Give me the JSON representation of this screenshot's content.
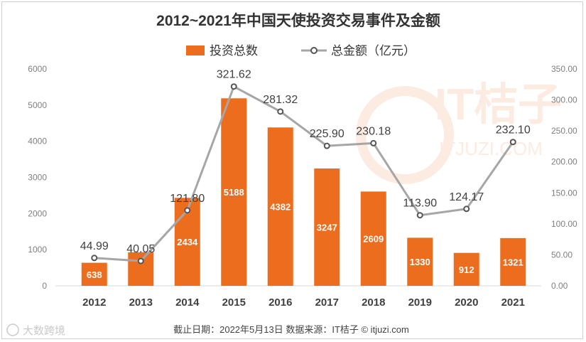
{
  "chart_data": {
    "type": "bar+line",
    "title": "2012~2021年中国天使投资交易事件及金额",
    "categories": [
      "2012",
      "2013",
      "2014",
      "2015",
      "2016",
      "2017",
      "2018",
      "2019",
      "2020",
      "2021"
    ],
    "series": [
      {
        "name": "投资总数",
        "type": "bar",
        "axis": "left",
        "color": "#ED6D1F",
        "values": [
          638,
          929,
          2434,
          5188,
          4382,
          3247,
          2609,
          1330,
          912,
          1321
        ],
        "labels": [
          "638",
          "",
          "2434",
          "5188",
          "4382",
          "3247",
          "2609",
          "1330",
          "912",
          "1321"
        ]
      },
      {
        "name": "总金额（亿元）",
        "type": "line",
        "axis": "right",
        "color": "#A6A6A6",
        "values": [
          44.99,
          40.05,
          121.8,
          321.62,
          281.32,
          225.9,
          230.18,
          113.9,
          124.17,
          232.1
        ],
        "labels": [
          "44.99",
          "40.05",
          "121.80",
          "321.62",
          "281.32",
          "225.90",
          "230.18",
          "113.90",
          "124.17",
          "232.10"
        ]
      }
    ],
    "y_left": {
      "min": 0,
      "max": 6000,
      "ticks": [
        "0",
        "1000",
        "2000",
        "3000",
        "4000",
        "5000",
        "6000"
      ]
    },
    "y_right": {
      "min": 0,
      "max": 350,
      "ticks": [
        "0.00",
        "50.00",
        "100.00",
        "150.00",
        "200.00",
        "250.00",
        "300.00",
        "350.00"
      ]
    },
    "legend_position": "top-center",
    "grid": false
  },
  "watermark": {
    "text": "IT桔子",
    "url": "ITJUZI.COM"
  },
  "footer": {
    "source": "截止日期：2022年5月13日    数据来源：IT桔子 © itjuzi.com"
  },
  "brand": {
    "text": "大数跨境"
  }
}
